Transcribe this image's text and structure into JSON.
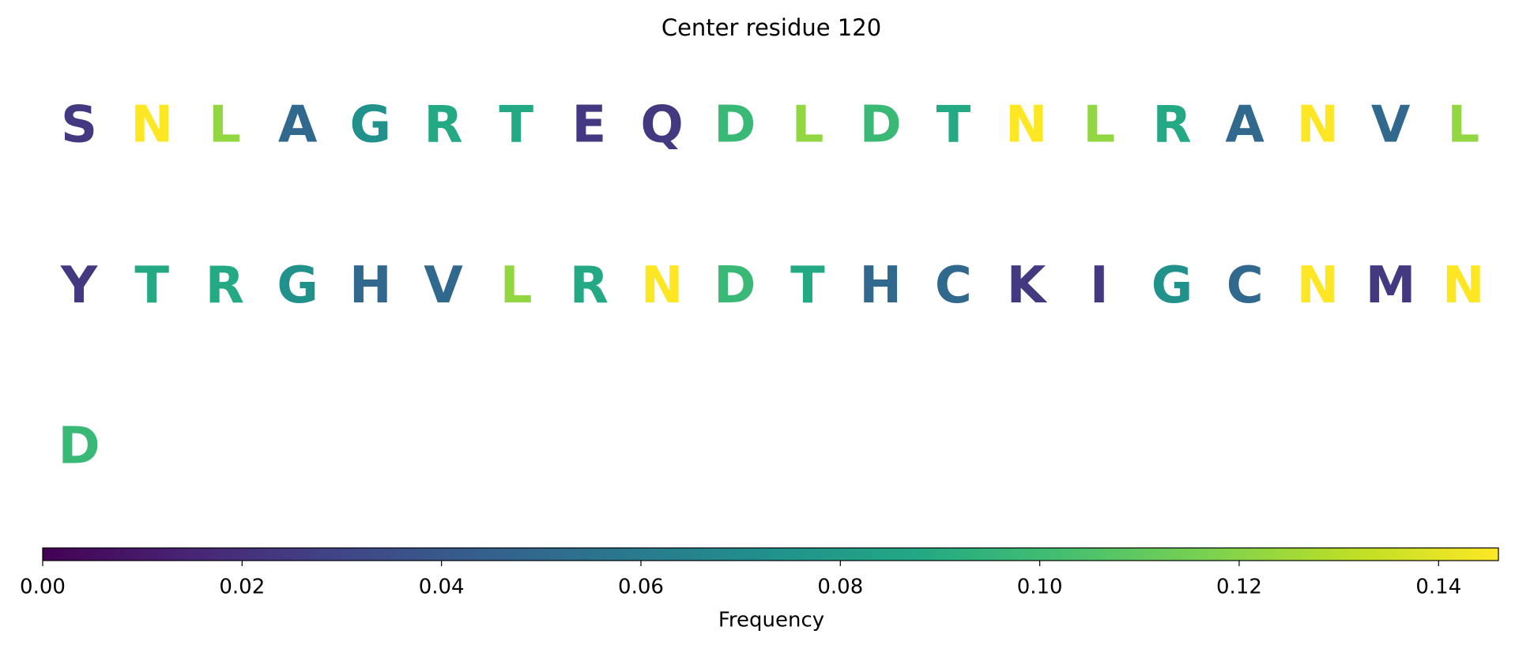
{
  "chart_data": {
    "type": "letters",
    "title": "Center residue 120",
    "categories": [
      "S",
      "N",
      "L",
      "A",
      "G",
      "R",
      "T",
      "E",
      "Q",
      "D",
      "L",
      "D",
      "T",
      "N",
      "L",
      "R",
      "A",
      "N",
      "V",
      "L",
      "Y",
      "T",
      "R",
      "G",
      "H",
      "V",
      "L",
      "R",
      "N",
      "D",
      "T",
      "H",
      "C",
      "K",
      "I",
      "G",
      "C",
      "N",
      "M",
      "N",
      "D"
    ],
    "values": [
      0.024,
      0.146,
      0.122,
      0.049,
      0.073,
      0.088,
      0.088,
      0.024,
      0.024,
      0.098,
      0.122,
      0.098,
      0.088,
      0.146,
      0.122,
      0.088,
      0.049,
      0.146,
      0.049,
      0.122,
      0.024,
      0.088,
      0.088,
      0.073,
      0.049,
      0.049,
      0.122,
      0.088,
      0.146,
      0.098,
      0.088,
      0.049,
      0.049,
      0.024,
      0.024,
      0.073,
      0.049,
      0.146,
      0.024,
      0.146,
      0.098
    ],
    "per_row": 20,
    "colormap": "viridis",
    "clim": [
      0,
      0.146
    ],
    "cticks": [
      {
        "value": 0,
        "label": "0.00"
      },
      {
        "value": 0.02,
        "label": "0.02"
      },
      {
        "value": 0.04,
        "label": "0.04"
      },
      {
        "value": 0.06,
        "label": "0.06"
      },
      {
        "value": 0.08,
        "label": "0.08"
      },
      {
        "value": 0.1,
        "label": "0.10"
      },
      {
        "value": 0.12,
        "label": "0.12"
      },
      {
        "value": 0.14,
        "label": "0.14"
      }
    ],
    "colorbar_label": "Frequency"
  }
}
